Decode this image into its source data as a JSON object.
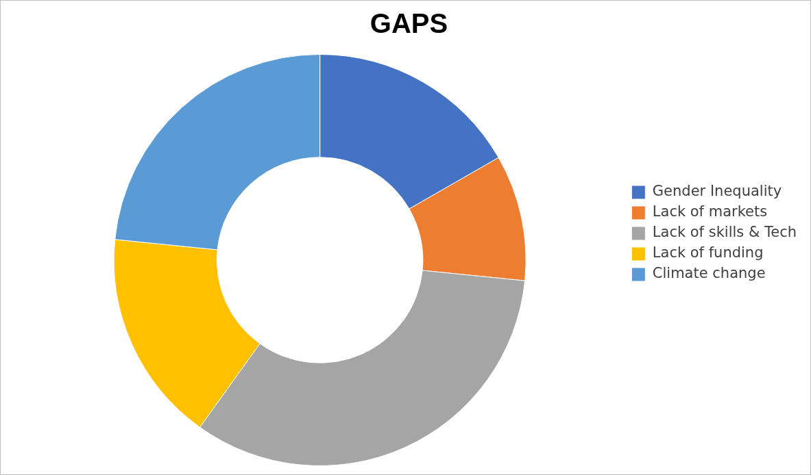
{
  "chart_data": {
    "type": "donut",
    "title": "GAPS",
    "categories": [
      "Gender Inequality",
      "Lack of markets",
      "Lack of skills & Tech",
      "Lack of funding",
      "Climate change"
    ],
    "values": [
      16.7,
      9.9,
      33.3,
      16.7,
      23.4
    ],
    "colors": [
      "#4472c4",
      "#ed7d31",
      "#a5a5a5",
      "#ffc000",
      "#5b9bd5"
    ],
    "legend": "right"
  }
}
